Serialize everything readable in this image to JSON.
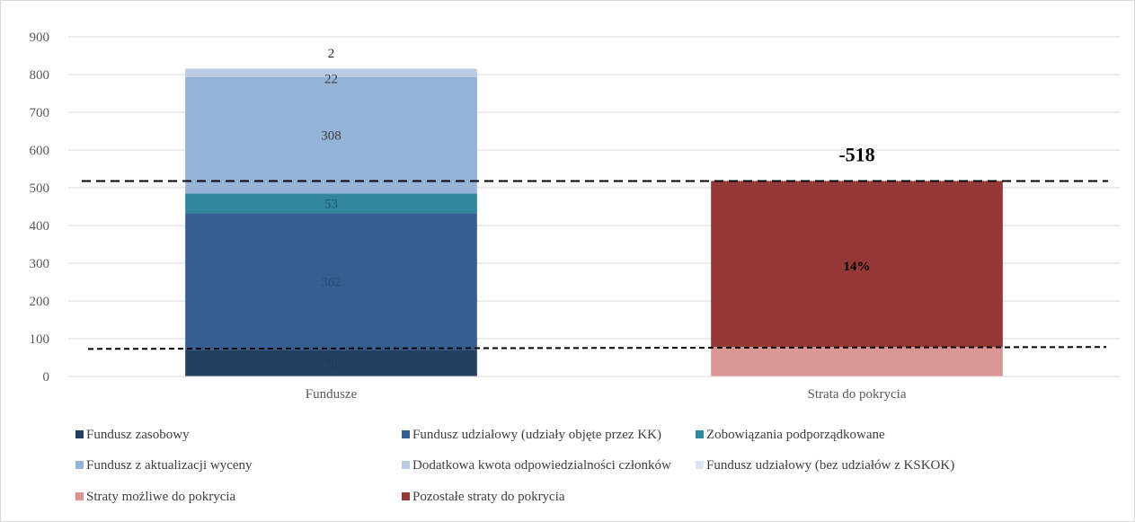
{
  "chart_data": {
    "type": "bar",
    "stacked": true,
    "categories": [
      "Fundusze",
      "Strata do pokrycia"
    ],
    "ylim": [
      0,
      900
    ],
    "yticks": [
      0,
      100,
      200,
      300,
      400,
      500,
      600,
      700,
      800,
      900
    ],
    "grid": true,
    "legend_position": "bottom",
    "series": [
      {
        "name": "Fundusz zasobowy",
        "color": "#243f60",
        "values": [
          70,
          0
        ],
        "labels": [
          "70",
          ""
        ],
        "label_color": "#1f3864"
      },
      {
        "name": "Fundusz udziałowy (udziały objęte przez KK)",
        "color": "#355f91",
        "values": [
          362,
          0
        ],
        "labels": [
          "362",
          ""
        ],
        "label_color": "#2e4a6e"
      },
      {
        "name": "Zobowiązania podporządkowane",
        "color": "#31859c",
        "values": [
          53,
          0
        ],
        "labels": [
          "53",
          ""
        ],
        "label_color": "#205867"
      },
      {
        "name": "Fundusz z aktualizacji wyceny",
        "color": "#95b3d7",
        "values": [
          308,
          0
        ],
        "labels": [
          "308",
          ""
        ],
        "label_color": "#404040"
      },
      {
        "name": "Dodatkowa kwota odpowiedzialności członków",
        "color": "#b8cce4",
        "values": [
          22,
          0
        ],
        "labels": [
          "22",
          ""
        ],
        "label_color": "#404040"
      },
      {
        "name": "Fundusz udziałowy (bez udziałów z KSKOK)",
        "color": "#dce6f2",
        "values": [
          2,
          0
        ],
        "labels": [
          "2",
          ""
        ],
        "label_color": "#262626"
      },
      {
        "name": "Straty możliwe do pokrycia",
        "color": "#da9694",
        "values": [
          0,
          78
        ],
        "labels": [
          "",
          ""
        ],
        "label_color": "#404040"
      },
      {
        "name": "Pozostałe straty do pokrycia",
        "color": "#953735",
        "values": [
          0,
          440
        ],
        "labels": [
          "",
          "14%"
        ],
        "label_color": "#000000"
      }
    ],
    "annotations": [
      {
        "text": "-518",
        "category": "Strata do pokrycia",
        "y": 518
      }
    ],
    "reference_lines": [
      {
        "y_start": 518,
        "y_end": 518,
        "style": "dashed"
      },
      {
        "y_start": 73,
        "y_end": 78,
        "style": "dashed"
      }
    ]
  }
}
